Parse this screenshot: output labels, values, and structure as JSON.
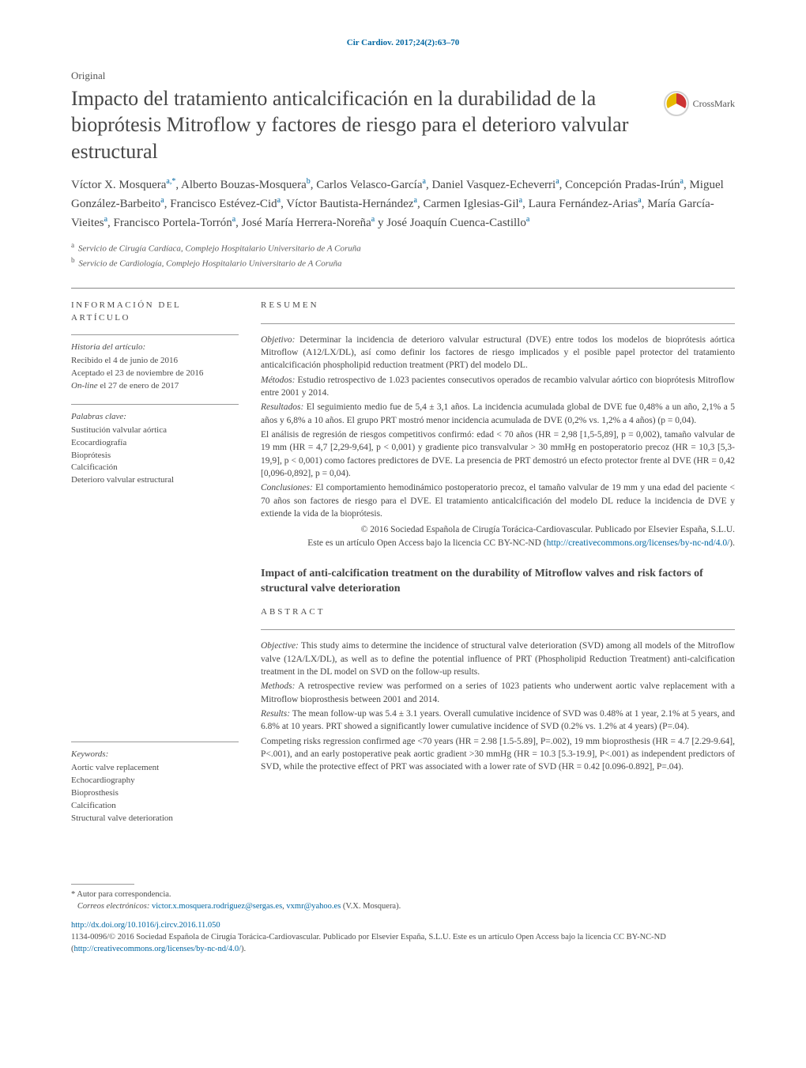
{
  "citation": "Cir Cardiov. 2017;24(2):63–70",
  "article_type": "Original",
  "title": "Impacto del tratamiento anticalcificación en la durabilidad de la bioprótesis Mitroflow y factores de riesgo para el deterioro valvular estructural",
  "crossmark_label": "CrossMark",
  "authors_html": "Víctor X. Mosquera<sup>a,*</sup>,  Alberto Bouzas-Mosquera<sup>b</sup>,  Carlos Velasco-García<sup>a</sup>,  Daniel Vasquez-Echeverri<sup>a</sup>,  Concepción Pradas-Irún<sup>a</sup>,  Miguel González-Barbeito<sup>a</sup>,  Francisco Estévez-Cid<sup>a</sup>,  Víctor Bautista-Hernández<sup>a</sup>,  Carmen Iglesias-Gil<sup>a</sup>,  Laura Fernández-Arias<sup>a</sup>,  María García-Vieites<sup>a</sup>,  Francisco Portela-Torrón<sup>a</sup>,  José María Herrera-Noreña<sup>a</sup>  y José Joaquín Cuenca-Castillo<sup>a</sup>",
  "affiliations": [
    {
      "sup": "a",
      "text": "Servicio de Cirugía Cardíaca, Complejo Hospitalario Universitario de A Coruña"
    },
    {
      "sup": "b",
      "text": "Servicio de Cardiología, Complejo Hospitalario Universitario de A Coruña"
    }
  ],
  "sidebar": {
    "info_heading": "información del artículo",
    "history_heading": "Historia del artículo:",
    "history_lines": [
      "Recibido el 4 de junio de 2016",
      "Aceptado el 23 de noviembre de 2016",
      "On-line el 27 de enero de 2017"
    ],
    "keywords_es_heading": "Palabras clave:",
    "keywords_es": [
      "Sustitución valvular aórtica",
      "Ecocardiografía",
      "Bioprótesis",
      "Calcificación",
      "Deterioro valvular estructural"
    ],
    "keywords_en_heading": "Keywords:",
    "keywords_en": [
      "Aortic valve replacement",
      "Echocardiography",
      "Bioprosthesis",
      "Calcification",
      "Structural valve deterioration"
    ]
  },
  "resumen": {
    "heading": "resumen",
    "paragraphs": [
      {
        "lead": "Objetivo:",
        "text": " Determinar la incidencia de deterioro valvular estructural (DVE) entre todos los modelos de bioprótesis aórtica Mitroflow (A12/LX/DL), así como definir los factores de riesgo implicados y el posible papel protector del tratamiento anticalcificación phospholipid reduction treatment (PRT) del modelo DL."
      },
      {
        "lead": "Métodos:",
        "text": " Estudio retrospectivo de 1.023 pacientes consecutivos operados de recambio valvular aórtico con bioprótesis Mitroflow entre 2001 y 2014."
      },
      {
        "lead": "Resultados:",
        "text": " El seguimiento medio fue de 5,4 ± 3,1 años. La incidencia acumulada global de DVE fue 0,48% a un año, 2,1% a 5 años y 6,8% a 10 años. El grupo PRT mostró menor incidencia acumulada de DVE (0,2% vs. 1,2% a 4 años) (p = 0,04)."
      },
      {
        "lead": "",
        "text": "El análisis de regresión de riesgos competitivos confirmó: edad < 70 años (HR = 2,98 [1,5-5,89], p = 0,002), tamaño valvular de 19 mm (HR = 4,7 [2,29-9,64], p < 0,001) y gradiente pico transvalvular > 30 mmHg en postoperatorio precoz (HR = 10,3 [5,3-19,9], p < 0,001) como factores predictores de DVE. La presencia de PRT demostró un efecto protector frente al DVE (HR = 0,42 [0,096-0,892], p = 0,04)."
      },
      {
        "lead": "Conclusiones:",
        "text": " El comportamiento hemodinámico postoperatorio precoz, el tamaño valvular de 19 mm y una edad del paciente < 70 años son factores de riesgo para el DVE. El tratamiento anticalcificación del modelo DL reduce la incidencia de DVE y extiende la vida de la bioprótesis."
      }
    ],
    "copyright_line1": "© 2016 Sociedad Española de Cirugía Torácica-Cardiovascular. Publicado por Elsevier España, S.L.U.",
    "copyright_line2_pre": "Este es un artículo Open Access bajo la licencia CC BY-NC-ND (",
    "copyright_link": "http://creativecommons.org/licenses/by-nc-nd/4.0/",
    "copyright_line2_post": ")."
  },
  "english_title": "Impact of anti-calcification treatment on the durability of Mitroflow valves and risk factors of structural valve deterioration",
  "abstract": {
    "heading": "abstract",
    "paragraphs": [
      {
        "lead": "Objective:",
        "text": " This study aims to determine the incidence of structural valve deterioration (SVD) among all models of the Mitroflow valve (12A/LX/DL), as well as to define the potential influence of PRT (Phospholipid Reduction Treatment) anti-calcification treatment in the DL model on SVD on the follow-up results."
      },
      {
        "lead": "Methods:",
        "text": " A retrospective review was performed on a series of 1023 patients who underwent aortic valve replacement with a Mitroflow bioprosthesis between 2001 and 2014."
      },
      {
        "lead": "Results:",
        "text": " The mean follow-up was 5.4 ± 3.1 years. Overall cumulative incidence of SVD was 0.48% at 1 year, 2.1% at 5 years, and 6.8% at 10 years. PRT showed a significantly lower cumulative incidence of SVD (0.2% vs. 1.2% at 4 years) (P=.04)."
      },
      {
        "lead": "",
        "text": "Competing risks regression confirmed age <70 years (HR = 2.98 [1.5-5.89], P=.002), 19 mm bioprosthesis (HR = 4.7 [2.29-9.64], P<.001), and an early postoperative peak aortic gradient >30 mmHg (HR = 10.3 [5.3-19.9], P<.001) as independent predictors of SVD, while the protective effect of PRT was associated with a lower rate of SVD (HR = 0.42 [0.096-0.892], P=.04)."
      }
    ]
  },
  "footer": {
    "corr_marker": "* Autor para correspondencia.",
    "emails_label": "Correos electrónicos:",
    "email1": "victor.x.mosquera.rodriguez@sergas.es",
    "email_sep": ", ",
    "email2": "vxmr@yahoo.es",
    "email_tail": " (V.X. Mosquera).",
    "doi": "http://dx.doi.org/10.1016/j.circv.2016.11.050",
    "issn_pre": "1134-0096/© 2016 Sociedad Española de Cirugía Torácica-Cardiovascular. Publicado por Elsevier España, S.L.U. Este es un artículo Open Access bajo la licencia CC BY-NC-ND (",
    "issn_link": "http://creativecommons.org/licenses/by-nc-nd/4.0/",
    "issn_post": ")."
  },
  "colors": {
    "link": "#0066a1",
    "text": "#3a3a3a",
    "heading": "#464646",
    "rule": "#888888",
    "crossmark_ring": "#d0d0d0",
    "crossmark_red": "#cc3333",
    "crossmark_yellow": "#e6b800"
  }
}
